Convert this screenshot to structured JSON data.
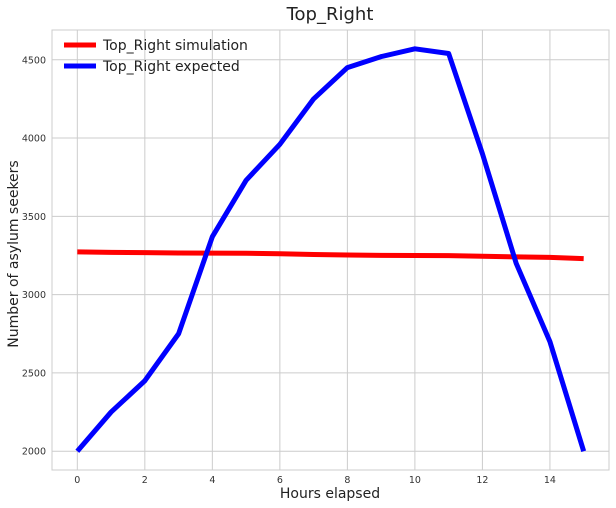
{
  "chart_data": {
    "type": "line",
    "title": "Top_Right",
    "xlabel": "Hours elapsed",
    "ylabel": "Number of asylum seekers",
    "xlim": [
      -0.75,
      15.75
    ],
    "ylim": [
      1880,
      4690
    ],
    "xticks": [
      0,
      2,
      4,
      6,
      8,
      10,
      12,
      14
    ],
    "yticks": [
      2000,
      2500,
      3000,
      3500,
      4000,
      4500
    ],
    "grid": true,
    "legend_position": "top-left",
    "x": [
      0,
      1,
      2,
      3,
      4,
      5,
      6,
      7,
      8,
      9,
      10,
      11,
      12,
      13,
      14,
      15
    ],
    "series": [
      {
        "name": "Top_Right simulation",
        "color": "#ff0000",
        "values": [
          3273,
          3270,
          3268,
          3266,
          3265,
          3264,
          3261,
          3256,
          3253,
          3251,
          3250,
          3249,
          3245,
          3241,
          3238,
          3230
        ]
      },
      {
        "name": "Top_Right expected",
        "color": "#0000ff",
        "values": [
          2000,
          2250,
          2450,
          2750,
          3370,
          3730,
          3960,
          4250,
          4450,
          4520,
          4570,
          4540,
          3900,
          3200,
          2700,
          2000
        ]
      }
    ]
  }
}
